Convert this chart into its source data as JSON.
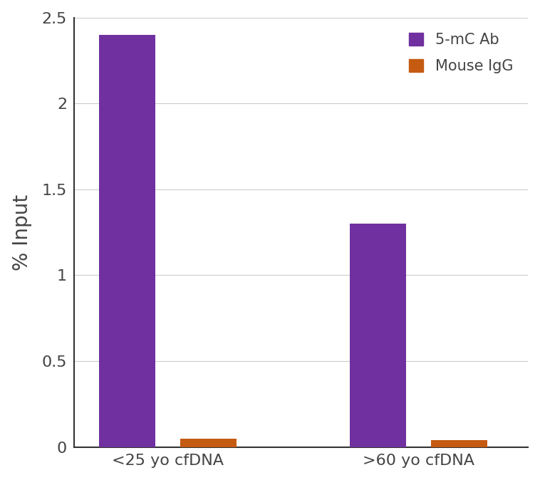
{
  "categories": [
    "<25 yo cfDNA",
    ">60 yo cfDNA"
  ],
  "series": [
    {
      "label": "5-mC Ab",
      "values": [
        2.4,
        1.3
      ],
      "color": "#7030A0"
    },
    {
      "label": "Mouse IgG",
      "values": [
        0.05,
        0.04
      ],
      "color": "#C55A11"
    }
  ],
  "ylabel": "% Input",
  "ylim": [
    0,
    2.5
  ],
  "yticks": [
    0,
    0.5,
    1,
    1.5,
    2,
    2.5
  ],
  "bar_width": 0.18,
  "background_color": "#ffffff",
  "plot_background_color": "#ffffff",
  "grid_color": "#cccccc",
  "ylabel_fontsize": 20,
  "tick_fontsize": 16,
  "legend_fontsize": 15,
  "axis_color": "#444444",
  "spine_color": "#333333"
}
